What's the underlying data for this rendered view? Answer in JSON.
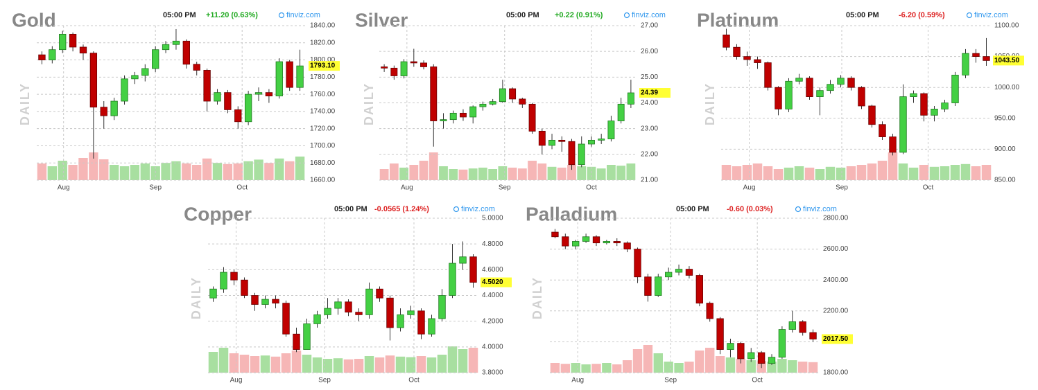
{
  "chart_data": [
    {
      "type": "candlestick",
      "title": "Gold",
      "period_label": "DAILY",
      "time": "05:00 PM",
      "change": "+11.20 (0.63%)",
      "change_color": "#22aa22",
      "source": "finviz.com",
      "last_value": {
        "value": 1793.1,
        "label": "1793.10"
      },
      "open": [
        1806,
        1800,
        1812,
        1830,
        1815,
        1808,
        1745,
        1735,
        1752,
        1778,
        1782,
        1790,
        1812,
        1818,
        1822,
        1795,
        1788,
        1752,
        1762,
        1742,
        1728,
        1760,
        1762,
        1758,
        1798,
        1768
      ],
      "high": [
        1810,
        1816,
        1834,
        1832,
        1818,
        1810,
        1752,
        1756,
        1782,
        1786,
        1795,
        1816,
        1822,
        1836,
        1824,
        1798,
        1790,
        1766,
        1765,
        1746,
        1764,
        1768,
        1766,
        1802,
        1800,
        1812
      ],
      "low": [
        1795,
        1796,
        1808,
        1810,
        1800,
        1685,
        1720,
        1730,
        1748,
        1772,
        1775,
        1786,
        1808,
        1812,
        1790,
        1782,
        1740,
        1748,
        1738,
        1720,
        1724,
        1752,
        1750,
        1755,
        1764,
        1764
      ],
      "close": [
        1800,
        1812,
        1830,
        1815,
        1808,
        1745,
        1735,
        1752,
        1778,
        1782,
        1790,
        1812,
        1818,
        1822,
        1795,
        1788,
        1752,
        1762,
        1742,
        1728,
        1760,
        1762,
        1758,
        1798,
        1768,
        1793.1
      ],
      "volume": [
        60,
        50,
        70,
        55,
        80,
        100,
        75,
        55,
        50,
        55,
        60,
        50,
        62,
        68,
        60,
        55,
        78,
        62,
        58,
        60,
        68,
        74,
        62,
        78,
        68,
        85
      ],
      "ylim": [
        1660,
        1840
      ],
      "yticks": [
        {
          "value": 1660,
          "label": "1660.00"
        },
        {
          "value": 1680,
          "label": "1680.00"
        },
        {
          "value": 1700,
          "label": "1700.00"
        },
        {
          "value": 1720,
          "label": "1720.00"
        },
        {
          "value": 1740,
          "label": "1740.00"
        },
        {
          "value": 1760,
          "label": "1760.00"
        },
        {
          "value": 1780,
          "label": "1780.00"
        },
        {
          "value": 1800,
          "label": "1800.00"
        },
        {
          "value": 1820,
          "label": "1820.00"
        },
        {
          "value": 1840,
          "label": "1840.00"
        }
      ],
      "xticks": [
        {
          "value": 2.1,
          "label": "Aug"
        },
        {
          "value": 11,
          "label": "Sep"
        },
        {
          "value": 19.4,
          "label": "Oct"
        }
      ],
      "grid": true,
      "up_color": "#44d044",
      "down_color": "#c00000",
      "volume_up_color": "#a8dfa0",
      "volume_down_color": "#f6b6b6"
    },
    {
      "type": "candlestick",
      "title": "Silver",
      "period_label": "DAILY",
      "time": "05:00 PM",
      "change": "+0.22 (0.91%)",
      "change_color": "#22aa22",
      "source": "finviz.com",
      "last_value": {
        "value": 24.39,
        "label": "24.39"
      },
      "open": [
        25.4,
        25.35,
        25.05,
        25.6,
        25.55,
        25.4,
        23.3,
        23.35,
        23.6,
        23.45,
        23.85,
        23.95,
        24.05,
        24.55,
        24.15,
        23.95,
        22.9,
        22.35,
        22.55,
        22.5,
        21.6,
        22.4,
        22.55,
        22.6,
        23.3,
        23.95
      ],
      "high": [
        25.5,
        25.45,
        25.7,
        26.1,
        25.65,
        25.5,
        23.6,
        23.7,
        23.75,
        23.9,
        24.05,
        24.15,
        24.9,
        24.6,
        24.2,
        24.0,
        23.0,
        22.8,
        22.7,
        22.6,
        22.7,
        22.7,
        22.8,
        23.5,
        24.2,
        24.9
      ],
      "low": [
        25.2,
        24.9,
        24.95,
        25.4,
        25.3,
        22.3,
        23.0,
        23.2,
        23.3,
        23.2,
        23.7,
        23.9,
        24.0,
        24.0,
        23.8,
        22.8,
        22.0,
        22.2,
        22.1,
        21.4,
        21.5,
        22.3,
        22.4,
        22.5,
        23.2,
        23.8
      ],
      "close": [
        25.35,
        25.05,
        25.6,
        25.55,
        25.4,
        23.3,
        23.35,
        23.6,
        23.45,
        23.85,
        23.95,
        24.05,
        24.55,
        24.15,
        23.95,
        22.9,
        22.35,
        22.55,
        22.5,
        21.6,
        22.4,
        22.55,
        22.6,
        23.3,
        23.95,
        24.39
      ],
      "volume": [
        40,
        60,
        45,
        55,
        70,
        100,
        50,
        40,
        38,
        42,
        45,
        40,
        50,
        45,
        42,
        70,
        60,
        48,
        45,
        55,
        50,
        48,
        42,
        55,
        52,
        60
      ],
      "ylim": [
        21,
        27
      ],
      "yticks": [
        {
          "value": 21,
          "label": "21.00"
        },
        {
          "value": 22,
          "label": "22.00"
        },
        {
          "value": 23,
          "label": "23.00"
        },
        {
          "value": 24,
          "label": "24.00"
        },
        {
          "value": 25,
          "label": "25.00"
        },
        {
          "value": 26,
          "label": "26.00"
        },
        {
          "value": 27,
          "label": "27.00"
        }
      ],
      "xticks": [
        {
          "value": 2.3,
          "label": "Aug"
        },
        {
          "value": 12.2,
          "label": "Sep"
        },
        {
          "value": 21,
          "label": "Oct"
        }
      ],
      "grid": true,
      "up_color": "#44d044",
      "down_color": "#c00000",
      "volume_up_color": "#a8dfa0",
      "volume_down_color": "#f6b6b6"
    },
    {
      "type": "candlestick",
      "title": "Platinum",
      "period_label": "DAILY",
      "time": "05:00 PM",
      "change": "-6.20 (0.59%)",
      "change_color": "#dd2222",
      "source": "finviz.com",
      "last_value": {
        "value": 1043.5,
        "label": "1043.50"
      },
      "open": [
        1085,
        1065,
        1050,
        1045,
        1040,
        1000,
        965,
        1010,
        1015,
        985,
        995,
        1005,
        1015,
        1000,
        970,
        940,
        920,
        895,
        985,
        990,
        955,
        965,
        975,
        1020,
        1055,
        1050
      ],
      "high": [
        1095,
        1070,
        1058,
        1050,
        1042,
        1002,
        1015,
        1022,
        1018,
        1000,
        1012,
        1020,
        1018,
        1002,
        972,
        945,
        925,
        1005,
        995,
        992,
        970,
        980,
        1025,
        1062,
        1062,
        1080
      ],
      "low": [
        1060,
        1045,
        1035,
        1030,
        995,
        955,
        960,
        1005,
        980,
        955,
        990,
        1000,
        995,
        965,
        935,
        915,
        890,
        892,
        975,
        945,
        945,
        960,
        970,
        1015,
        1040,
        1035
      ],
      "close": [
        1065,
        1050,
        1045,
        1040,
        1000,
        965,
        1010,
        1015,
        985,
        995,
        1005,
        1015,
        1000,
        970,
        940,
        920,
        895,
        985,
        990,
        955,
        965,
        975,
        1020,
        1055,
        1050,
        1043.5
      ],
      "volume": [
        55,
        50,
        55,
        60,
        50,
        40,
        45,
        50,
        45,
        40,
        48,
        45,
        50,
        55,
        60,
        70,
        100,
        60,
        45,
        55,
        48,
        50,
        55,
        58,
        50,
        55
      ],
      "ylim": [
        850,
        1100
      ],
      "yticks": [
        {
          "value": 850,
          "label": "850.00"
        },
        {
          "value": 900,
          "label": "900.00"
        },
        {
          "value": 950,
          "label": "950.00"
        },
        {
          "value": 1000,
          "label": "1000.00"
        },
        {
          "value": 1050,
          "label": "1050.00"
        },
        {
          "value": 1100,
          "label": "1100.00"
        }
      ],
      "xticks": [
        {
          "value": 2.2,
          "label": "Aug"
        },
        {
          "value": 11.1,
          "label": "Sep"
        },
        {
          "value": 19.4,
          "label": "Oct"
        }
      ],
      "grid": true,
      "up_color": "#44d044",
      "down_color": "#c00000",
      "volume_up_color": "#a8dfa0",
      "volume_down_color": "#f6b6b6"
    },
    {
      "type": "candlestick",
      "title": "Copper",
      "period_label": "DAILY",
      "time": "05:00 PM",
      "change": "-0.0565 (1.24%)",
      "change_color": "#dd2222",
      "source": "finviz.com",
      "last_value": {
        "value": 4.502,
        "label": "4.5020"
      },
      "open": [
        4.38,
        4.45,
        4.58,
        4.52,
        4.4,
        4.33,
        4.37,
        4.34,
        4.1,
        3.98,
        4.18,
        4.25,
        4.3,
        4.35,
        4.27,
        4.25,
        4.45,
        4.38,
        4.15,
        4.25,
        4.28,
        4.1,
        4.22,
        4.4,
        4.65,
        4.7
      ],
      "high": [
        4.47,
        4.62,
        4.6,
        4.54,
        4.42,
        4.4,
        4.4,
        4.36,
        4.15,
        4.22,
        4.28,
        4.38,
        4.38,
        4.37,
        4.3,
        4.5,
        4.47,
        4.4,
        4.3,
        4.32,
        4.3,
        4.25,
        4.45,
        4.8,
        4.82,
        4.72
      ],
      "low": [
        4.35,
        4.42,
        4.48,
        4.38,
        4.28,
        4.3,
        4.3,
        4.08,
        3.96,
        3.98,
        4.15,
        4.22,
        4.25,
        4.24,
        4.2,
        4.22,
        4.35,
        4.05,
        4.12,
        4.22,
        4.06,
        4.08,
        4.2,
        4.38,
        4.6,
        4.46
      ],
      "close": [
        4.45,
        4.58,
        4.52,
        4.4,
        4.33,
        4.37,
        4.34,
        4.1,
        3.98,
        4.18,
        4.25,
        4.3,
        4.35,
        4.27,
        4.25,
        4.45,
        4.38,
        4.15,
        4.25,
        4.28,
        4.1,
        4.22,
        4.4,
        4.65,
        4.7,
        4.502
      ],
      "volume": [
        75,
        90,
        70,
        65,
        60,
        62,
        58,
        70,
        80,
        65,
        55,
        50,
        52,
        48,
        50,
        60,
        55,
        62,
        58,
        56,
        60,
        55,
        65,
        95,
        85,
        90
      ],
      "ylim": [
        3.8,
        5.0
      ],
      "yticks": [
        {
          "value": 3.8,
          "label": "3.8000"
        },
        {
          "value": 4.0,
          "label": "4.0000"
        },
        {
          "value": 4.2,
          "label": "4.2000"
        },
        {
          "value": 4.4,
          "label": "4.4000"
        },
        {
          "value": 4.6,
          "label": "4.6000"
        },
        {
          "value": 4.8,
          "label": "4.8000"
        },
        {
          "value": 5.0,
          "label": "5.0000"
        }
      ],
      "xticks": [
        {
          "value": 2.2,
          "label": "Aug"
        },
        {
          "value": 10.7,
          "label": "Sep"
        },
        {
          "value": 19.3,
          "label": "Oct"
        }
      ],
      "grid": true,
      "up_color": "#44d044",
      "down_color": "#c00000",
      "volume_up_color": "#a8dfa0",
      "volume_down_color": "#f6b6b6"
    },
    {
      "type": "candlestick",
      "title": "Palladium",
      "period_label": "DAILY",
      "time": "05:00 PM",
      "change": "-0.60 (0.03%)",
      "change_color": "#dd2222",
      "source": "finviz.com",
      "last_value": {
        "value": 2017.5,
        "label": "2017.50"
      },
      "open": [
        2710,
        2680,
        2620,
        2650,
        2680,
        2640,
        2650,
        2640,
        2600,
        2420,
        2300,
        2420,
        2450,
        2470,
        2430,
        2250,
        2150,
        1950,
        1990,
        1890,
        1930,
        1860,
        1900,
        2080,
        2130,
        2060
      ],
      "high": [
        2730,
        2700,
        2660,
        2700,
        2690,
        2660,
        2670,
        2650,
        2610,
        2440,
        2440,
        2480,
        2500,
        2490,
        2440,
        2260,
        2160,
        2020,
        2000,
        1960,
        1940,
        1920,
        2100,
        2200,
        2140,
        2080
      ],
      "low": [
        2670,
        2600,
        2600,
        2640,
        2620,
        2630,
        2620,
        2580,
        2380,
        2260,
        2290,
        2400,
        2430,
        2410,
        2230,
        2130,
        1920,
        1900,
        1860,
        1870,
        1830,
        1850,
        1890,
        2060,
        2040,
        2000
      ],
      "close": [
        2680,
        2620,
        2650,
        2680,
        2640,
        2650,
        2640,
        2600,
        2420,
        2300,
        2420,
        2450,
        2470,
        2430,
        2250,
        2150,
        1950,
        1990,
        1890,
        1930,
        1860,
        1900,
        2080,
        2130,
        2060,
        2017.5
      ],
      "volume": [
        35,
        32,
        35,
        30,
        32,
        35,
        30,
        45,
        85,
        100,
        70,
        40,
        35,
        40,
        80,
        90,
        60,
        55,
        50,
        45,
        42,
        40,
        50,
        45,
        40,
        38
      ],
      "ylim": [
        1800,
        2800
      ],
      "yticks": [
        {
          "value": 1800,
          "label": "1800.00"
        },
        {
          "value": 2000,
          "label": "2000.00"
        },
        {
          "value": 2200,
          "label": "2200.00"
        },
        {
          "value": 2400,
          "label": "2400.00"
        },
        {
          "value": 2600,
          "label": "2600.00"
        },
        {
          "value": 2800,
          "label": "2800.00"
        }
      ],
      "xticks": [
        {
          "value": 2.2,
          "label": "Aug"
        },
        {
          "value": 11.2,
          "label": "Sep"
        },
        {
          "value": 19.6,
          "label": "Oct"
        }
      ],
      "grid": true,
      "up_color": "#44d044",
      "down_color": "#c00000",
      "volume_up_color": "#a8dfa0",
      "volume_down_color": "#f6b6b6"
    }
  ]
}
